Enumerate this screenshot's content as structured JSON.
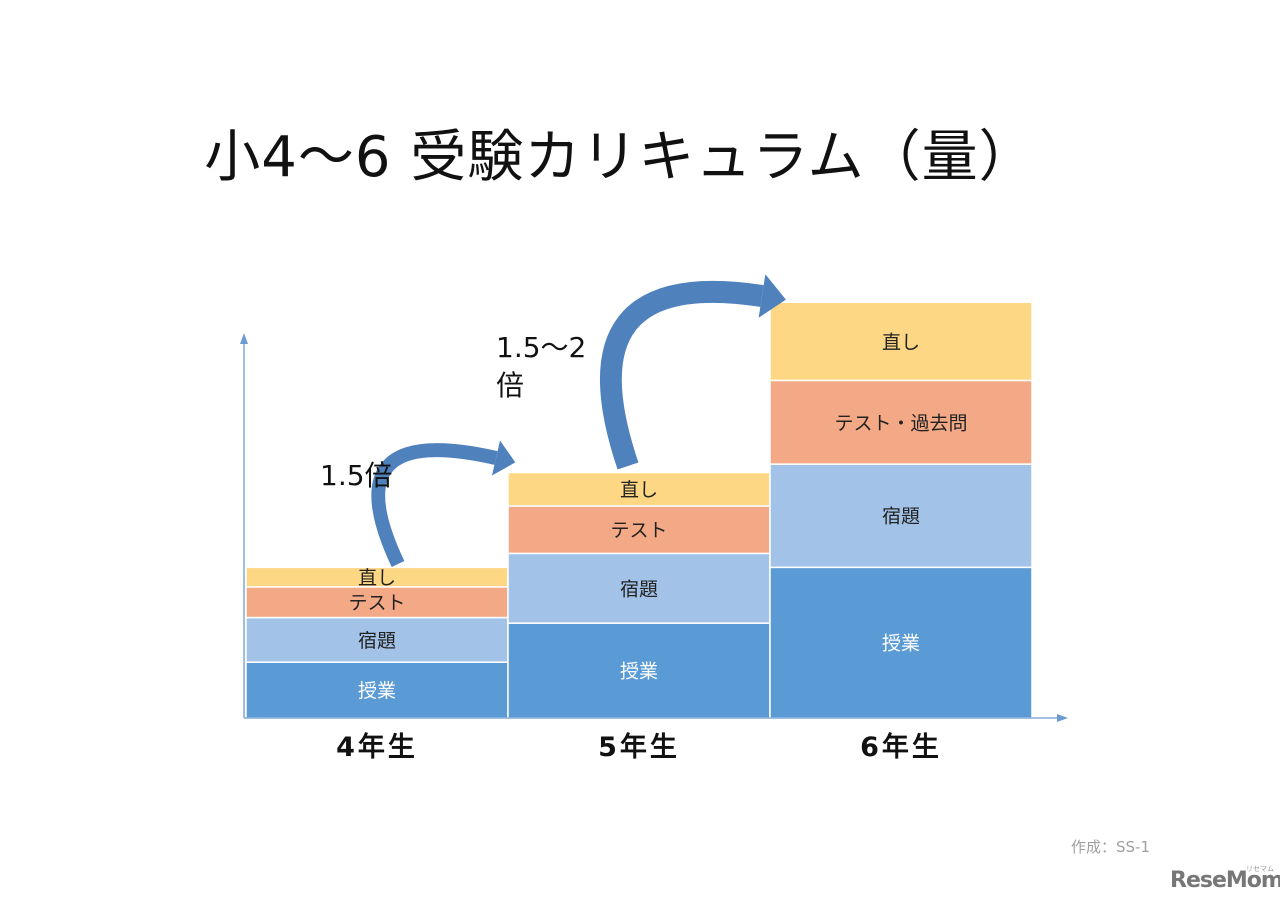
{
  "title": "小4～6 受験カリキュラム（量）",
  "chart_data": {
    "type": "bar",
    "stacked": true,
    "categories": [
      "4年生",
      "5年生",
      "6年生"
    ],
    "series": [
      {
        "name": "授業",
        "values": [
          1.0,
          1.7,
          2.7
        ],
        "color": "#5b9bd5"
      },
      {
        "name": "宿題",
        "values": [
          0.8,
          1.25,
          1.85
        ],
        "color": "#a3c2e8"
      },
      {
        "name": "テスト",
        "values": [
          0.55,
          0.85,
          1.5
        ],
        "color": "#f3a985"
      },
      {
        "name": "直し",
        "values": [
          0.35,
          0.6,
          1.4
        ],
        "color": "#fdd784"
      }
    ],
    "segment_labels": [
      [
        "授業",
        "宿題",
        "テスト",
        "直し"
      ],
      [
        "授業",
        "宿題",
        "テスト",
        "直し"
      ],
      [
        "授業",
        "宿題",
        "テスト・過去問",
        "直し"
      ]
    ],
    "annotations": [
      {
        "text": "1.5倍",
        "from": "4年生",
        "to": "5年生"
      },
      {
        "text_line1": "1.5～2",
        "text_line2": "倍",
        "from": "5年生",
        "to": "6年生"
      }
    ],
    "arrow_color": "#4f81bd"
  },
  "footer": {
    "credit": "作成：SS-1",
    "logo": "ReseMom",
    "logo_small": "リセマム"
  }
}
